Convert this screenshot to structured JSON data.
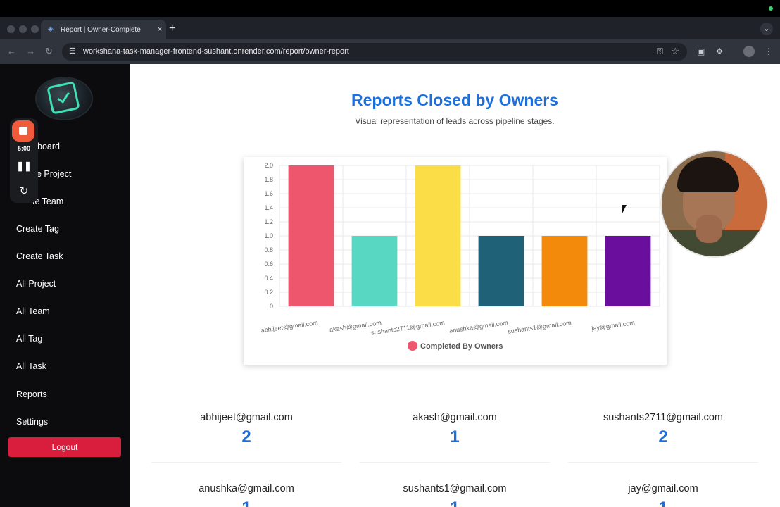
{
  "browser": {
    "tab_title": "Report | Owner-Complete",
    "tab_close": "×",
    "new_tab": "+",
    "url": "workshana-task-manager-frontend-sushant.onrender.com/report/owner-report"
  },
  "sidebar": {
    "items": [
      {
        "label": "Dashboard",
        "visible": "board"
      },
      {
        "label": "Create Project",
        "visible": "e Project"
      },
      {
        "label": "Create Team",
        "visible": "te Team"
      },
      {
        "label": "Create Tag",
        "visible": "Create Tag"
      },
      {
        "label": "Create Task",
        "visible": "Create Task"
      },
      {
        "label": "All Project",
        "visible": "All Project"
      },
      {
        "label": "All Team",
        "visible": "All Team"
      },
      {
        "label": "All Tag",
        "visible": "All Tag"
      },
      {
        "label": "All Task",
        "visible": "All Task"
      },
      {
        "label": "Reports",
        "visible": "Reports"
      },
      {
        "label": "Settings",
        "visible": "Settings"
      }
    ],
    "logout_label": "Logout"
  },
  "recorder": {
    "time": "5:00",
    "pause_icon": "❚❚",
    "restart_icon": "↻"
  },
  "main": {
    "title": "Reports Closed by Owners",
    "subtitle": "Visual representation of leads across pipeline stages."
  },
  "chart_data": {
    "type": "bar",
    "categories": [
      "abhijeet@gmail.com",
      "akash@gmail.com",
      "sushants2711@gmail.com",
      "anushka@gmail.com",
      "sushants1@gmail.com",
      "jay@gmail.com"
    ],
    "series": [
      {
        "name": "Completed By Owners",
        "values": [
          2,
          1,
          2,
          1,
          1,
          1
        ]
      }
    ],
    "bar_colors": [
      "#ee566d",
      "#58d8c2",
      "#fbde47",
      "#1f6278",
      "#f48a0c",
      "#6a0f9d"
    ],
    "legend_color": "#ee566d",
    "ylim": [
      0,
      2
    ],
    "yticks": [
      "0",
      "0.2",
      "0.4",
      "0.6",
      "0.8",
      "1.0",
      "1.2",
      "1.4",
      "1.6",
      "1.8",
      "2.0"
    ],
    "grid": true,
    "legend_position": "bottom"
  },
  "stats": [
    {
      "email": "abhijeet@gmail.com",
      "count": "2"
    },
    {
      "email": "akash@gmail.com",
      "count": "1"
    },
    {
      "email": "sushants2711@gmail.com",
      "count": "2"
    },
    {
      "email": "anushka@gmail.com",
      "count": "1"
    },
    {
      "email": "sushants1@gmail.com",
      "count": "1"
    },
    {
      "email": "jay@gmail.com",
      "count": "1"
    }
  ]
}
